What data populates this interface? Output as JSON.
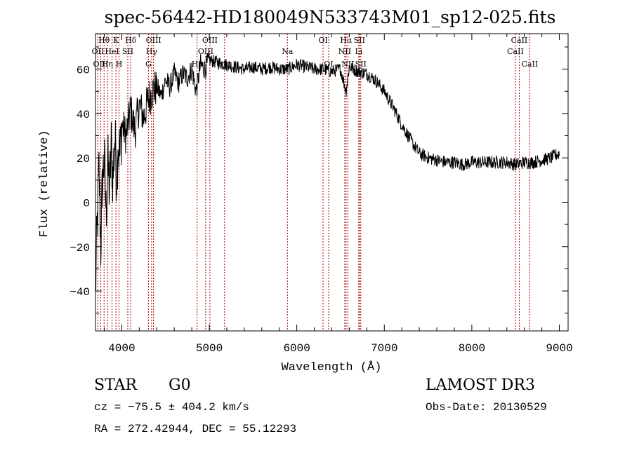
{
  "chart_data": {
    "type": "line",
    "title": "spec-56442-HD180049N533743M01_sp12-025.fits",
    "xlabel": "Wavelength (Å)",
    "ylabel": "Flux (relative)",
    "xlim": [
      3700,
      9100
    ],
    "ylim": [
      -58,
      76
    ],
    "xticks": [
      4000,
      5000,
      6000,
      7000,
      8000,
      9000
    ],
    "yticks": [
      -40,
      -20,
      0,
      20,
      40,
      60
    ],
    "series": [
      {
        "name": "flux",
        "x": [
          3700,
          3720,
          3740,
          3760,
          3780,
          3800,
          3820,
          3840,
          3860,
          3880,
          3900,
          3920,
          3940,
          3960,
          3980,
          4000,
          4050,
          4100,
          4150,
          4200,
          4250,
          4300,
          4350,
          4400,
          4450,
          4500,
          4550,
          4600,
          4650,
          4700,
          4750,
          4800,
          4850,
          4900,
          4950,
          5000,
          5100,
          5200,
          5300,
          5400,
          5500,
          5600,
          5700,
          5800,
          5900,
          6000,
          6100,
          6200,
          6300,
          6400,
          6500,
          6563,
          6600,
          6700,
          6800,
          6900,
          7000,
          7100,
          7200,
          7300,
          7400,
          7500,
          7600,
          7700,
          7800,
          7900,
          8000,
          8100,
          8200,
          8300,
          8400,
          8500,
          8600,
          8700,
          8800,
          8900,
          9000
        ],
        "y": [
          -40,
          -10,
          15,
          -20,
          10,
          20,
          -5,
          18,
          5,
          25,
          10,
          30,
          12,
          28,
          20,
          35,
          30,
          42,
          32,
          44,
          38,
          46,
          50,
          52,
          48,
          55,
          52,
          58,
          54,
          58,
          56,
          60,
          50,
          62,
          60,
          64,
          63,
          62,
          61,
          60,
          61,
          60,
          61,
          60,
          60,
          62,
          61,
          60,
          60,
          59,
          60,
          50,
          61,
          59,
          58,
          55,
          50,
          43,
          35,
          28,
          22,
          20,
          19,
          18,
          18,
          17,
          18,
          18,
          18,
          18,
          18,
          17,
          18,
          18,
          19,
          20,
          22
        ]
      }
    ],
    "lines": [
      {
        "name": "Hθ",
        "wl": 3798,
        "row": 0
      },
      {
        "name": "OII",
        "wl": 3727,
        "row": 1
      },
      {
        "name": "OIII",
        "wl": 3760,
        "row": 2
      },
      {
        "name": "K",
        "wl": 3934,
        "row": 0
      },
      {
        "name": "HeI",
        "wl": 3889,
        "row": 1
      },
      {
        "name": "Hη",
        "wl": 3835,
        "row": 2
      },
      {
        "name": "H",
        "wl": 3969,
        "row": 2
      },
      {
        "name": "Hδ",
        "wl": 4102,
        "row": 0
      },
      {
        "name": "SII",
        "wl": 4069,
        "row": 1
      },
      {
        "name": "OIII",
        "wl": 4363,
        "row": 0
      },
      {
        "name": "Hγ",
        "wl": 4341,
        "row": 1
      },
      {
        "name": "G",
        "wl": 4305,
        "row": 2
      },
      {
        "name": "OIII",
        "wl": 5007,
        "row": 0
      },
      {
        "name": "OIII",
        "wl": 4959,
        "row": 1
      },
      {
        "name": "Hβ",
        "wl": 4861,
        "row": 2
      },
      {
        "name": "Mg",
        "wl": 5175,
        "row": 2
      },
      {
        "name": "Na",
        "wl": 5893,
        "row": 1
      },
      {
        "name": "OI",
        "wl": 6300,
        "row": 0
      },
      {
        "name": "OI",
        "wl": 6364,
        "row": 2
      },
      {
        "name": "Hα",
        "wl": 6563,
        "row": 0
      },
      {
        "name": "SII",
        "wl": 6716,
        "row": 0
      },
      {
        "name": "NII",
        "wl": 6548,
        "row": 1
      },
      {
        "name": "Li",
        "wl": 6708,
        "row": 1
      },
      {
        "name": "NII",
        "wl": 6584,
        "row": 2
      },
      {
        "name": "SII",
        "wl": 6731,
        "row": 2
      },
      {
        "name": "CaII",
        "wl": 8542,
        "row": 0
      },
      {
        "name": "CaII",
        "wl": 8498,
        "row": 1
      },
      {
        "name": "CaII",
        "wl": 8662,
        "row": 2
      }
    ]
  },
  "info": {
    "object_class": "STAR",
    "subclass": "G0",
    "survey": "LAMOST DR3",
    "redshift": "cz = −75.5 ± 404.2 km/s",
    "obs_date": "Obs-Date: 20130529",
    "coordinates": "RA = 272.42944, DEC =  55.12293"
  }
}
